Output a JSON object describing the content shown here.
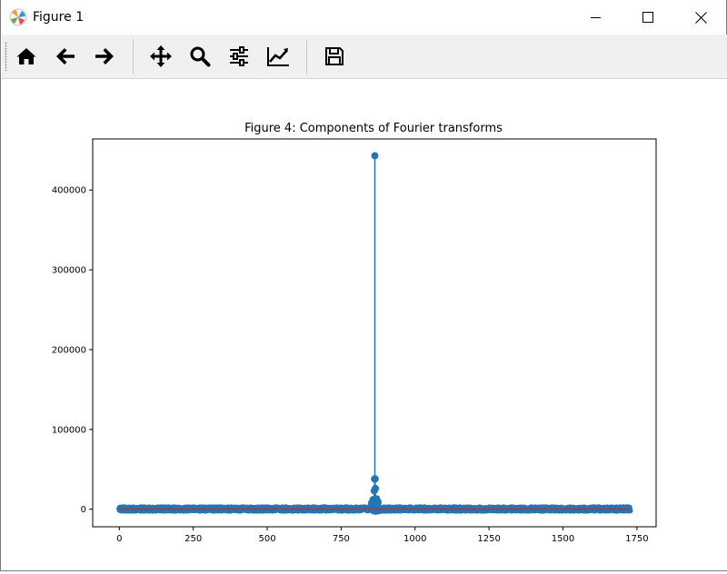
{
  "window": {
    "title": "Figure 1",
    "app_icon": "matplotlib-icon",
    "controls": [
      "minimize-icon",
      "maximize-icon",
      "close-icon"
    ]
  },
  "toolbar": {
    "tools": [
      {
        "name": "home-icon"
      },
      {
        "name": "back-arrow-icon"
      },
      {
        "name": "forward-arrow-icon"
      },
      {
        "name": "pan-icon"
      },
      {
        "name": "zoom-icon"
      },
      {
        "name": "configure-subplots-icon"
      },
      {
        "name": "edit-axis-icon"
      },
      {
        "name": "save-icon"
      }
    ]
  },
  "colors": {
    "series": "#1f77b4",
    "baseline": "#d62728",
    "toolbar_bg": "#f0f0f0"
  },
  "chart_data": {
    "type": "stem",
    "title": "Figure 4: Components of Fourier transforms",
    "xlabel": "",
    "ylabel": "",
    "xlim": [
      -90,
      1815
    ],
    "ylim": [
      -22000,
      464000
    ],
    "xticks": [
      0,
      250,
      500,
      750,
      1000,
      1250,
      1500,
      1750
    ],
    "xtick_labels": [
      "0",
      "250",
      "500",
      "750",
      "1000",
      "1250",
      "1500",
      "1750"
    ],
    "yticks": [
      0,
      100000,
      200000,
      300000,
      400000
    ],
    "ytick_labels": [
      "0",
      "100000",
      "200000",
      "300000",
      "400000"
    ],
    "n_points": 1728,
    "x_range": [
      0,
      1727
    ],
    "baseline": 0,
    "notable_points": [
      {
        "x": 864,
        "y": 443000
      },
      {
        "x": 865,
        "y": 38000
      },
      {
        "x": 863,
        "y": 38000
      },
      {
        "x": 866,
        "y": 26000
      },
      {
        "x": 862,
        "y": 23000
      },
      {
        "x": 870,
        "y": 13000
      },
      {
        "x": 858,
        "y": 12000
      },
      {
        "x": 875,
        "y": 9000
      },
      {
        "x": 853,
        "y": 8000
      }
    ],
    "background_level": 2500,
    "grid": false,
    "legend": "none"
  }
}
